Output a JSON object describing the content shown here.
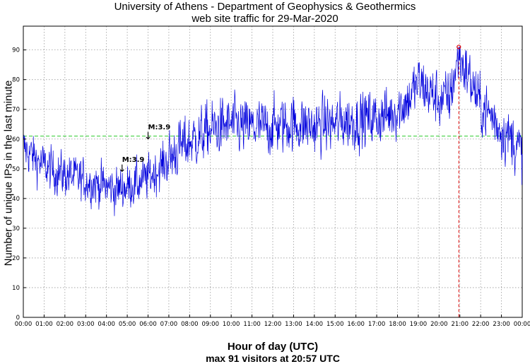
{
  "chart_data": {
    "type": "line",
    "title": "University of Athens - Department of Geophysics & Geothermics",
    "subtitle": "web site traffic for 29-Mar-2020",
    "xlabel": "Hour of day (UTC)",
    "ylabel": "Number of unique IPs in the last minute",
    "caption": "max 91 visitors at 20:57 UTC",
    "x_ticks": [
      "00:00",
      "01:00",
      "02:00",
      "03:00",
      "04:00",
      "05:00",
      "06:00",
      "07:00",
      "08:00",
      "09:00",
      "10:00",
      "11:00",
      "12:00",
      "13:00",
      "14:00",
      "15:00",
      "16:00",
      "17:00",
      "18:00",
      "19:00",
      "20:00",
      "21:00",
      "22:00",
      "23:00",
      "00:00"
    ],
    "y_ticks": [
      0,
      10,
      20,
      30,
      40,
      50,
      60,
      70,
      80,
      90
    ],
    "xlim_hours": [
      0,
      24
    ],
    "ylim": [
      0,
      98
    ],
    "grid": true,
    "series_color": "#0000dd",
    "average_line": {
      "value": 61,
      "color": "#33cc33"
    },
    "max_marker": {
      "hour": 20.95,
      "value": 91,
      "color": "#dd0000"
    },
    "annotations": [
      {
        "text": "M:3.9",
        "hour": 4.75,
        "value": 49
      },
      {
        "text": "M:3.9",
        "hour": 6.0,
        "value": 60
      }
    ],
    "series": [
      {
        "hours": [
          0,
          0.5,
          1,
          1.5,
          2,
          2.5,
          3,
          3.5,
          4,
          4.5,
          5,
          5.5,
          6,
          6.5,
          7,
          7.5,
          8,
          8.5,
          9,
          9.5,
          10,
          10.5,
          11,
          11.5,
          12,
          12.5,
          13,
          13.5,
          14,
          14.5,
          15,
          15.5,
          16,
          16.5,
          17,
          17.5,
          18,
          18.5,
          19,
          19.5,
          20,
          20.5,
          20.95,
          21.5,
          22,
          22.5,
          23,
          23.5,
          24
        ],
        "values": [
          57,
          54,
          51,
          49,
          48,
          47,
          46,
          45,
          44,
          43,
          44,
          45,
          47,
          50,
          53,
          57,
          59,
          61,
          63,
          64,
          65,
          64,
          64,
          64,
          64,
          65,
          65,
          65,
          64,
          65,
          65,
          66,
          66,
          67,
          67,
          68,
          70,
          73,
          79,
          76,
          73,
          74,
          88,
          80,
          71,
          68,
          63,
          60,
          55
        ]
      }
    ]
  }
}
